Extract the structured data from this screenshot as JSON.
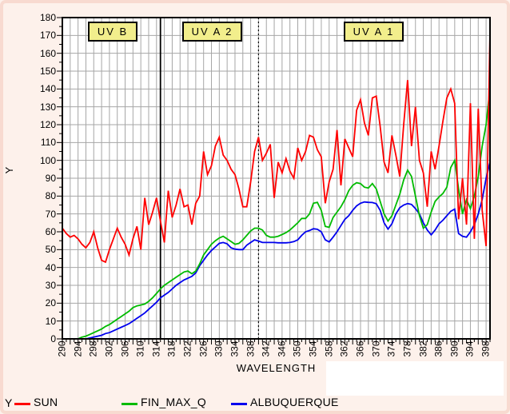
{
  "window": {
    "background": "#FDF1EB",
    "border_color": "#F8DAD0",
    "plot_background": "#FFFFFF",
    "grid_color": "#A6A6A6",
    "frame_color": "#000000",
    "band_fill": "#F2EE8C"
  },
  "legend": {
    "axis_label": "Y"
  },
  "chart_data": {
    "type": "line",
    "title": "",
    "xlabel": "WAVELENGTH",
    "ylabel": "Y",
    "x_min": 290,
    "x_max": 399,
    "x_step": 1,
    "ylim": [
      0,
      180
    ],
    "grid": true,
    "legend_position": "bottom",
    "x_label_ticks": [
      290,
      294,
      298,
      302,
      306,
      310,
      314,
      318,
      322,
      326,
      330,
      334,
      338,
      342,
      346,
      350,
      354,
      358,
      362,
      366,
      370,
      374,
      378,
      382,
      386,
      390,
      394,
      398
    ],
    "y_ticks": [
      0,
      10,
      20,
      30,
      40,
      50,
      60,
      70,
      80,
      90,
      100,
      110,
      120,
      130,
      140,
      150,
      160,
      170,
      180
    ],
    "vlines": [
      {
        "x": 315,
        "style": "solid"
      },
      {
        "x": 340,
        "style": "dotted"
      }
    ],
    "band_labels": [
      "UV B",
      "UV A 2",
      "UV A 1"
    ],
    "series": [
      {
        "name": "SUN",
        "color": "#FF0000",
        "values": [
          62,
          59,
          57,
          58,
          56,
          53,
          51,
          54,
          60,
          51,
          44,
          43,
          50,
          56,
          62,
          57,
          53,
          47,
          56,
          63,
          50,
          79,
          64,
          71,
          79,
          66,
          54,
          83,
          68,
          75,
          84,
          74,
          75,
          64,
          76,
          80,
          105,
          92,
          97,
          108,
          113,
          103,
          100,
          95,
          92,
          84,
          74,
          74,
          88,
          105,
          113,
          100,
          104,
          109,
          79,
          99,
          93,
          101,
          94,
          90,
          107,
          100,
          105,
          114,
          113,
          106,
          102,
          76,
          88,
          95,
          117,
          86,
          112,
          107,
          102,
          128,
          134,
          121,
          114,
          135,
          136,
          119,
          99,
          93,
          114,
          103,
          91,
          120,
          145,
          108,
          130,
          100,
          93,
          74,
          105,
          95,
          108,
          122,
          135,
          140,
          132,
          67,
          90,
          64,
          132,
          56,
          129,
          72,
          52,
          172
        ]
      },
      {
        "name": "FIN_MAX_Q",
        "color": "#00BB00",
        "values": [
          0,
          0,
          0,
          0,
          0,
          1,
          1.5,
          2.5,
          3.5,
          4.5,
          5.5,
          7,
          8,
          9.5,
          11,
          12.5,
          14,
          15.5,
          17.5,
          18.5,
          19,
          19.5,
          21,
          23,
          25.5,
          28,
          30,
          31.5,
          33,
          34.5,
          36,
          37.5,
          38,
          36.5,
          38,
          42,
          47,
          50,
          53,
          55,
          56.5,
          57.5,
          56,
          54.5,
          53,
          53.5,
          55.5,
          58,
          60.5,
          62,
          62,
          61,
          58,
          57,
          57,
          57.5,
          58.5,
          59.5,
          61,
          63,
          65,
          67.5,
          67.5,
          70,
          76,
          76.5,
          72,
          63,
          62.5,
          68,
          71,
          74,
          78,
          83,
          86,
          87.5,
          87,
          85,
          84.5,
          87,
          84,
          77,
          70,
          66,
          69,
          75,
          81,
          89,
          94.5,
          91,
          80,
          69,
          62,
          64,
          71,
          77,
          79.5,
          81.5,
          85,
          96,
          100,
          84,
          70,
          78,
          73,
          80,
          91,
          108,
          120,
          141
        ]
      },
      {
        "name": "ALBUQUERQUE",
        "color": "#0000EE",
        "values": [
          0,
          0,
          0,
          0,
          0,
          0,
          0,
          0.5,
          1,
          1.5,
          2,
          3,
          3.5,
          4.5,
          5.5,
          6.5,
          7.5,
          8.5,
          10,
          11.5,
          13,
          14.5,
          16.5,
          18.5,
          20.5,
          23,
          24.5,
          26,
          28,
          30,
          31.5,
          33,
          34,
          35,
          37,
          41,
          44,
          47,
          49.5,
          51.5,
          53.5,
          54,
          53.3,
          51,
          50.3,
          50,
          50,
          52.5,
          54,
          55.5,
          54.8,
          54,
          54,
          54,
          54,
          53.8,
          53.8,
          53.8,
          54,
          54.5,
          55.5,
          58,
          60,
          60.7,
          61.7,
          61.4,
          60,
          55.5,
          54.3,
          57,
          60,
          63.5,
          67,
          69,
          72,
          74.5,
          76,
          76.7,
          76.5,
          76.4,
          75.7,
          72,
          65,
          61.5,
          64.5,
          70,
          73.5,
          75,
          75.8,
          75.3,
          73,
          70,
          65,
          61,
          58.3,
          61,
          64.5,
          66.5,
          69,
          71.5,
          72.7,
          59,
          57.5,
          57,
          60,
          64,
          70,
          78,
          90,
          99
        ]
      }
    ]
  }
}
